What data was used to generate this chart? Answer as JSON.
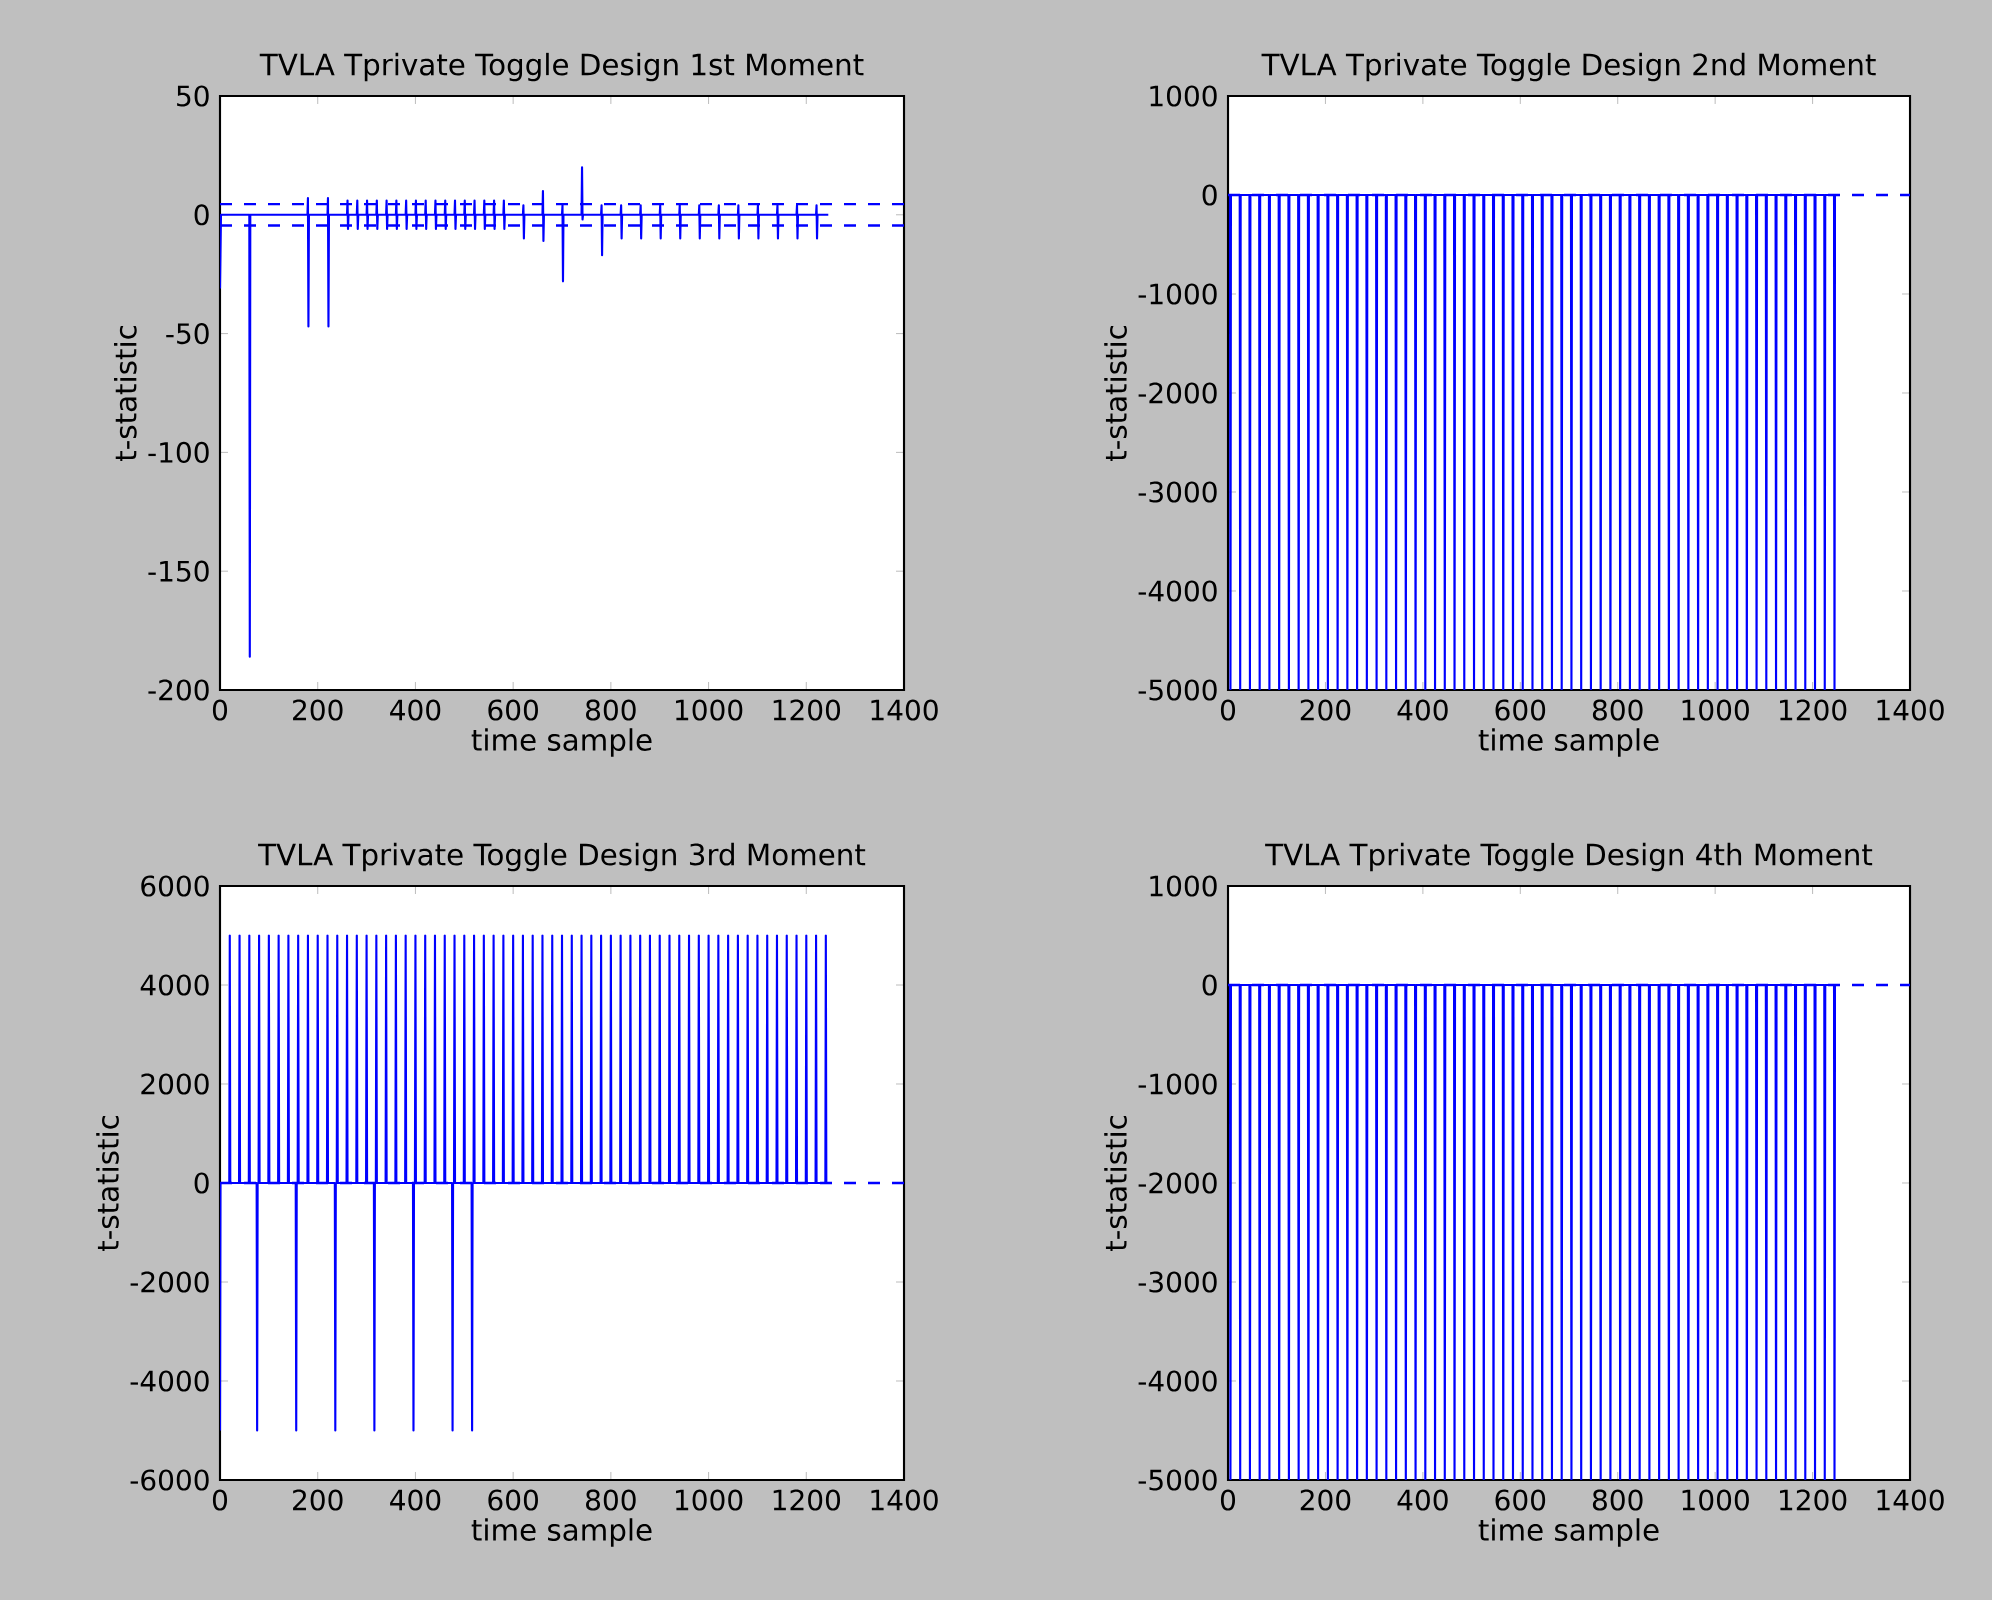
{
  "chart_data": [
    {
      "type": "line",
      "title": "TVLA Tprivate Toggle Design 1st Moment",
      "xlabel": "time sample",
      "ylabel": "t-statistic",
      "color": "#0000ff",
      "x": [
        0,
        2,
        60,
        61,
        62,
        179,
        180,
        181,
        182,
        220,
        221,
        222,
        223,
        260,
        261,
        262,
        263,
        280,
        281,
        282,
        283,
        300,
        301,
        302,
        303,
        320,
        321,
        322,
        323,
        340,
        341,
        342,
        343,
        360,
        361,
        362,
        363,
        380,
        381,
        382,
        383,
        400,
        401,
        402,
        403,
        420,
        421,
        422,
        423,
        440,
        441,
        442,
        443,
        460,
        461,
        462,
        463,
        480,
        481,
        482,
        483,
        500,
        501,
        502,
        503,
        520,
        521,
        522,
        523,
        540,
        541,
        542,
        543,
        560,
        561,
        562,
        563,
        580,
        581,
        582,
        583,
        620,
        621,
        622,
        623,
        660,
        661,
        662,
        663,
        700,
        701,
        702,
        703,
        740,
        741,
        742,
        743,
        780,
        781,
        782,
        783,
        820,
        821,
        822,
        823,
        860,
        861,
        862,
        863,
        900,
        901,
        902,
        903,
        940,
        941,
        942,
        943,
        980,
        981,
        982,
        983,
        1020,
        1021,
        1022,
        1023,
        1060,
        1061,
        1062,
        1063,
        1100,
        1101,
        1102,
        1103,
        1140,
        1141,
        1142,
        1143,
        1180,
        1181,
        1182,
        1183,
        1220,
        1221,
        1222,
        1223,
        1245
      ],
      "values": [
        -31,
        0,
        0,
        -186,
        0,
        0,
        7,
        -47,
        0,
        0,
        7,
        -47,
        0,
        0,
        6,
        -6,
        0,
        0,
        6,
        -6,
        0,
        0,
        6,
        -6,
        0,
        0,
        6,
        -6,
        0,
        0,
        6,
        -6,
        0,
        0,
        6,
        -6,
        0,
        0,
        6,
        -6,
        0,
        0,
        6,
        -6,
        0,
        0,
        6,
        -6,
        0,
        0,
        6,
        -6,
        0,
        0,
        6,
        -6,
        0,
        0,
        6,
        -6,
        0,
        0,
        6,
        -6,
        0,
        0,
        6,
        -6,
        0,
        0,
        6,
        -6,
        0,
        0,
        6,
        -6,
        0,
        0,
        6,
        -6,
        0,
        0,
        4,
        -10,
        0,
        0,
        10,
        -11,
        0,
        0,
        4,
        -28,
        0,
        0,
        20,
        -2,
        0,
        0,
        4,
        -17,
        0,
        0,
        4,
        -10,
        0,
        0,
        4,
        -10,
        0,
        0,
        4,
        -10,
        0,
        0,
        4,
        -10,
        0,
        0,
        4,
        -10,
        0,
        0,
        4,
        -10,
        0,
        0,
        4,
        -10,
        0,
        0,
        4,
        -10,
        0,
        0,
        4,
        -10,
        0,
        0,
        4,
        -10,
        0,
        0,
        4,
        -10,
        0,
        0
      ],
      "xlim": [
        0,
        1400
      ],
      "xticks": [
        0,
        200,
        400,
        600,
        800,
        1000,
        1200,
        1400
      ],
      "ylim": [
        -200,
        50
      ],
      "yticks": [
        -200,
        -150,
        -100,
        -50,
        0,
        50
      ],
      "ref_lines": [
        {
          "axis": "y",
          "value": 4.5,
          "line_style": "dashed",
          "color": "#0000ff"
        },
        {
          "axis": "y",
          "value": -4.5,
          "line_style": "dashed",
          "color": "#0000ff"
        }
      ]
    },
    {
      "type": "line",
      "title": "TVLA Tprivate Toggle Design 2nd Moment",
      "xlabel": "time sample",
      "ylabel": "t-statistic",
      "color": "#0000ff",
      "x": [
        4,
        5,
        6,
        24,
        25,
        26,
        44,
        45,
        46,
        64,
        65,
        66,
        84,
        85,
        86,
        104,
        105,
        106,
        124,
        125,
        126,
        144,
        145,
        146,
        164,
        165,
        166,
        184,
        185,
        186,
        204,
        205,
        206,
        224,
        225,
        226,
        244,
        245,
        246,
        264,
        265,
        266,
        284,
        285,
        286,
        304,
        305,
        306,
        324,
        325,
        326,
        344,
        345,
        346,
        364,
        365,
        366,
        384,
        385,
        386,
        404,
        405,
        406,
        424,
        425,
        426,
        444,
        445,
        446,
        464,
        465,
        466,
        484,
        485,
        486,
        504,
        505,
        506,
        524,
        525,
        526,
        544,
        545,
        546,
        564,
        565,
        566,
        584,
        585,
        586,
        604,
        605,
        606,
        624,
        625,
        626,
        644,
        645,
        646,
        664,
        665,
        666,
        684,
        685,
        686,
        704,
        705,
        706,
        724,
        725,
        726,
        744,
        745,
        746,
        764,
        765,
        766,
        784,
        785,
        786,
        804,
        805,
        806,
        824,
        825,
        826,
        844,
        845,
        846,
        864,
        865,
        866,
        884,
        885,
        886,
        904,
        905,
        906,
        924,
        925,
        926,
        944,
        945,
        946,
        964,
        965,
        966,
        984,
        985,
        986,
        1004,
        1005,
        1006,
        1024,
        1025,
        1026,
        1044,
        1045,
        1046,
        1064,
        1065,
        1066,
        1084,
        1085,
        1086,
        1104,
        1105,
        1106,
        1124,
        1125,
        1126,
        1144,
        1145,
        1146,
        1164,
        1165,
        1166,
        1184,
        1185,
        1186,
        1204,
        1205,
        1206,
        1224,
        1225,
        1226,
        1244,
        1245,
        1246
      ],
      "values": [
        0,
        -5000,
        0,
        0,
        -5000,
        0,
        0,
        -5000,
        0,
        0,
        -5000,
        0,
        0,
        -5000,
        0,
        0,
        -5000,
        0,
        0,
        -5000,
        0,
        0,
        -5000,
        0,
        0,
        -5000,
        0,
        0,
        -5000,
        0,
        0,
        -5000,
        0,
        0,
        -5000,
        0,
        0,
        -5000,
        0,
        0,
        -5000,
        0,
        0,
        -5000,
        0,
        0,
        -5000,
        0,
        0,
        -5000,
        0,
        0,
        -5000,
        0,
        0,
        -5000,
        0,
        0,
        -5000,
        0,
        0,
        -5000,
        0,
        0,
        -5000,
        0,
        0,
        -5000,
        0,
        0,
        -5000,
        0,
        0,
        -5000,
        0,
        0,
        -5000,
        0,
        0,
        -5000,
        0,
        0,
        -5000,
        0,
        0,
        -5000,
        0,
        0,
        -5000,
        0,
        0,
        -5000,
        0,
        0,
        -5000,
        0,
        0,
        -5000,
        0,
        0,
        -5000,
        0,
        0,
        -5000,
        0,
        0,
        -5000,
        0,
        0,
        -5000,
        0,
        0,
        -5000,
        0,
        0,
        -5000,
        0,
        0,
        -5000,
        0,
        0,
        -5000,
        0,
        0,
        -5000,
        0,
        0,
        -5000,
        0,
        0,
        -5000,
        0,
        0,
        -5000,
        0,
        0,
        -5000,
        0,
        0,
        -5000,
        0,
        0,
        -5000,
        0,
        0,
        -5000,
        0,
        0,
        -5000,
        0,
        0,
        -5000,
        0,
        0,
        -5000,
        0,
        0,
        -5000,
        0,
        0,
        -5000,
        0,
        0,
        -5000,
        0,
        0,
        -5000,
        0,
        0,
        -5000,
        0,
        0,
        -5000,
        0,
        0,
        -5000,
        0,
        0,
        -5000,
        0,
        0,
        -5000,
        0,
        0,
        -5000,
        0,
        0,
        -5000,
        0
      ],
      "xlim": [
        0,
        1400
      ],
      "xticks": [
        0,
        200,
        400,
        600,
        800,
        1000,
        1200,
        1400
      ],
      "ylim": [
        -5000,
        1000
      ],
      "yticks": [
        -5000,
        -4000,
        -3000,
        -2000,
        -1000,
        0,
        1000
      ],
      "ref_lines": [
        {
          "axis": "y",
          "value": 0,
          "line_style": "dashed",
          "color": "#0000ff"
        }
      ]
    },
    {
      "type": "line",
      "title": "TVLA Tprivate Toggle Design 3rd Moment",
      "xlabel": "time sample",
      "ylabel": "t-statistic",
      "color": "#0000ff",
      "x": [
        0,
        1,
        19,
        20,
        21,
        39,
        40,
        41,
        59,
        60,
        61,
        75,
        76,
        77,
        79,
        80,
        81,
        99,
        100,
        101,
        119,
        120,
        121,
        139,
        140,
        141,
        155,
        156,
        157,
        159,
        160,
        161,
        179,
        180,
        181,
        199,
        200,
        201,
        219,
        220,
        221,
        235,
        236,
        237,
        239,
        240,
        241,
        259,
        260,
        261,
        279,
        280,
        281,
        299,
        300,
        301,
        315,
        316,
        317,
        319,
        320,
        321,
        339,
        340,
        341,
        359,
        360,
        361,
        379,
        380,
        381,
        395,
        396,
        397,
        399,
        400,
        401,
        419,
        420,
        421,
        439,
        440,
        441,
        459,
        460,
        461,
        475,
        476,
        477,
        479,
        480,
        481,
        499,
        500,
        501,
        515,
        516,
        517,
        519,
        520,
        521,
        539,
        540,
        541,
        559,
        560,
        561,
        579,
        580,
        581,
        599,
        600,
        601,
        619,
        620,
        621,
        639,
        640,
        641,
        659,
        660,
        661,
        679,
        680,
        681,
        699,
        700,
        701,
        719,
        720,
        721,
        739,
        740,
        741,
        759,
        760,
        761,
        779,
        780,
        781,
        799,
        800,
        801,
        819,
        820,
        821,
        839,
        840,
        841,
        859,
        860,
        861,
        879,
        880,
        881,
        899,
        900,
        901,
        919,
        920,
        921,
        939,
        940,
        941,
        959,
        960,
        961,
        979,
        980,
        981,
        999,
        1000,
        1001,
        1019,
        1020,
        1021,
        1039,
        1040,
        1041,
        1059,
        1060,
        1061,
        1079,
        1080,
        1081,
        1099,
        1100,
        1101,
        1119,
        1120,
        1121,
        1139,
        1140,
        1141,
        1159,
        1160,
        1161,
        1179,
        1180,
        1181,
        1199,
        1200,
        1201,
        1219,
        1220,
        1221,
        1239,
        1240,
        1241
      ],
      "values": [
        -5000,
        0,
        0,
        5000,
        0,
        0,
        5000,
        0,
        0,
        5000,
        0,
        0,
        -5000,
        0,
        0,
        5000,
        0,
        0,
        5000,
        0,
        0,
        5000,
        0,
        0,
        5000,
        0,
        0,
        -5000,
        0,
        0,
        5000,
        0,
        0,
        5000,
        0,
        0,
        5000,
        0,
        0,
        5000,
        0,
        0,
        -5000,
        0,
        0,
        5000,
        0,
        0,
        5000,
        0,
        0,
        5000,
        0,
        0,
        5000,
        0,
        0,
        -5000,
        0,
        0,
        5000,
        0,
        0,
        5000,
        0,
        0,
        5000,
        0,
        0,
        5000,
        0,
        0,
        -5000,
        0,
        0,
        5000,
        0,
        0,
        5000,
        0,
        0,
        5000,
        0,
        0,
        5000,
        0,
        0,
        -5000,
        0,
        0,
        5000,
        0,
        0,
        5000,
        0,
        0,
        -5000,
        0,
        0,
        5000,
        0,
        0,
        5000,
        0,
        0,
        5000,
        0,
        0,
        5000,
        0,
        0,
        5000,
        0,
        0,
        5000,
        0,
        0,
        5000,
        0,
        0,
        5000,
        0,
        0,
        5000,
        0,
        0,
        5000,
        0,
        0,
        5000,
        0,
        0,
        5000,
        0,
        0,
        5000,
        0,
        0,
        5000,
        0,
        0,
        5000,
        0,
        0,
        5000,
        0,
        0,
        5000,
        0,
        0,
        5000,
        0,
        0,
        5000,
        0,
        0,
        5000,
        0,
        0,
        5000,
        0,
        0,
        5000,
        0,
        0,
        5000,
        0,
        0,
        5000,
        0,
        0,
        5000,
        0,
        0,
        5000,
        0,
        0,
        5000,
        0,
        0,
        5000,
        0,
        0,
        5000,
        0,
        0,
        5000,
        0,
        0,
        5000,
        0,
        0,
        5000,
        0,
        0,
        5000,
        0,
        0,
        5000,
        0,
        0,
        5000,
        0,
        0,
        5000,
        0,
        0,
        5000,
        0
      ],
      "xlim": [
        0,
        1400
      ],
      "xticks": [
        0,
        200,
        400,
        600,
        800,
        1000,
        1200,
        1400
      ],
      "ylim": [
        -6000,
        6000
      ],
      "yticks": [
        -6000,
        -4000,
        -2000,
        0,
        2000,
        4000,
        6000
      ],
      "ref_lines": [
        {
          "axis": "y",
          "value": 0,
          "line_style": "dashed",
          "color": "#0000ff"
        }
      ]
    },
    {
      "type": "line",
      "title": "TVLA Tprivate Toggle Design 4th Moment",
      "xlabel": "time sample",
      "ylabel": "t-statistic",
      "color": "#0000ff",
      "x": [
        4,
        5,
        6,
        24,
        25,
        26,
        44,
        45,
        46,
        64,
        65,
        66,
        84,
        85,
        86,
        104,
        105,
        106,
        124,
        125,
        126,
        144,
        145,
        146,
        164,
        165,
        166,
        184,
        185,
        186,
        204,
        205,
        206,
        224,
        225,
        226,
        244,
        245,
        246,
        264,
        265,
        266,
        284,
        285,
        286,
        304,
        305,
        306,
        324,
        325,
        326,
        344,
        345,
        346,
        364,
        365,
        366,
        384,
        385,
        386,
        404,
        405,
        406,
        424,
        425,
        426,
        444,
        445,
        446,
        464,
        465,
        466,
        484,
        485,
        486,
        504,
        505,
        506,
        524,
        525,
        526,
        544,
        545,
        546,
        564,
        565,
        566,
        584,
        585,
        586,
        604,
        605,
        606,
        624,
        625,
        626,
        644,
        645,
        646,
        664,
        665,
        666,
        684,
        685,
        686,
        704,
        705,
        706,
        724,
        725,
        726,
        744,
        745,
        746,
        764,
        765,
        766,
        784,
        785,
        786,
        804,
        805,
        806,
        824,
        825,
        826,
        844,
        845,
        846,
        864,
        865,
        866,
        884,
        885,
        886,
        904,
        905,
        906,
        924,
        925,
        926,
        944,
        945,
        946,
        964,
        965,
        966,
        984,
        985,
        986,
        1004,
        1005,
        1006,
        1024,
        1025,
        1026,
        1044,
        1045,
        1046,
        1064,
        1065,
        1066,
        1084,
        1085,
        1086,
        1104,
        1105,
        1106,
        1124,
        1125,
        1126,
        1144,
        1145,
        1146,
        1164,
        1165,
        1166,
        1184,
        1185,
        1186,
        1204,
        1205,
        1206,
        1224,
        1225,
        1226,
        1244,
        1245,
        1246
      ],
      "values": [
        0,
        -5000,
        0,
        0,
        -5000,
        0,
        0,
        -5000,
        0,
        0,
        -5000,
        0,
        0,
        -5000,
        0,
        0,
        -5000,
        0,
        0,
        -5000,
        0,
        0,
        -5000,
        0,
        0,
        -5000,
        0,
        0,
        -5000,
        0,
        0,
        -5000,
        0,
        0,
        -5000,
        0,
        0,
        -5000,
        0,
        0,
        -5000,
        0,
        0,
        -5000,
        0,
        0,
        -5000,
        0,
        0,
        -5000,
        0,
        0,
        -5000,
        0,
        0,
        -5000,
        0,
        0,
        -5000,
        0,
        0,
        -5000,
        0,
        0,
        -5000,
        0,
        0,
        -5000,
        0,
        0,
        -5000,
        0,
        0,
        -5000,
        0,
        0,
        -5000,
        0,
        0,
        -5000,
        0,
        0,
        -5000,
        0,
        0,
        -5000,
        0,
        0,
        -5000,
        0,
        0,
        -5000,
        0,
        0,
        -5000,
        0,
        0,
        -5000,
        0,
        0,
        -5000,
        0,
        0,
        -5000,
        0,
        0,
        -5000,
        0,
        0,
        -5000,
        0,
        0,
        -5000,
        0,
        0,
        -5000,
        0,
        0,
        -5000,
        0,
        0,
        -5000,
        0,
        0,
        -5000,
        0,
        0,
        -5000,
        0,
        0,
        -5000,
        0,
        0,
        -5000,
        0,
        0,
        -5000,
        0,
        0,
        -5000,
        0,
        0,
        -5000,
        0,
        0,
        -5000,
        0,
        0,
        -5000,
        0,
        0,
        -5000,
        0,
        0,
        -5000,
        0,
        0,
        -5000,
        0,
        0,
        -5000,
        0,
        0,
        -5000,
        0,
        0,
        -5000,
        0,
        0,
        -5000,
        0,
        0,
        -5000,
        0,
        0,
        -5000,
        0,
        0,
        -5000,
        0,
        0,
        -5000,
        0,
        0,
        -5000,
        0,
        0,
        -5000,
        0
      ],
      "xlim": [
        0,
        1400
      ],
      "xticks": [
        0,
        200,
        400,
        600,
        800,
        1000,
        1200,
        1400
      ],
      "ylim": [
        -5000,
        1000
      ],
      "yticks": [
        -5000,
        -4000,
        -3000,
        -2000,
        -1000,
        0,
        1000
      ],
      "ref_lines": [
        {
          "axis": "y",
          "value": 0,
          "line_style": "dashed",
          "color": "#0000ff"
        }
      ]
    }
  ]
}
